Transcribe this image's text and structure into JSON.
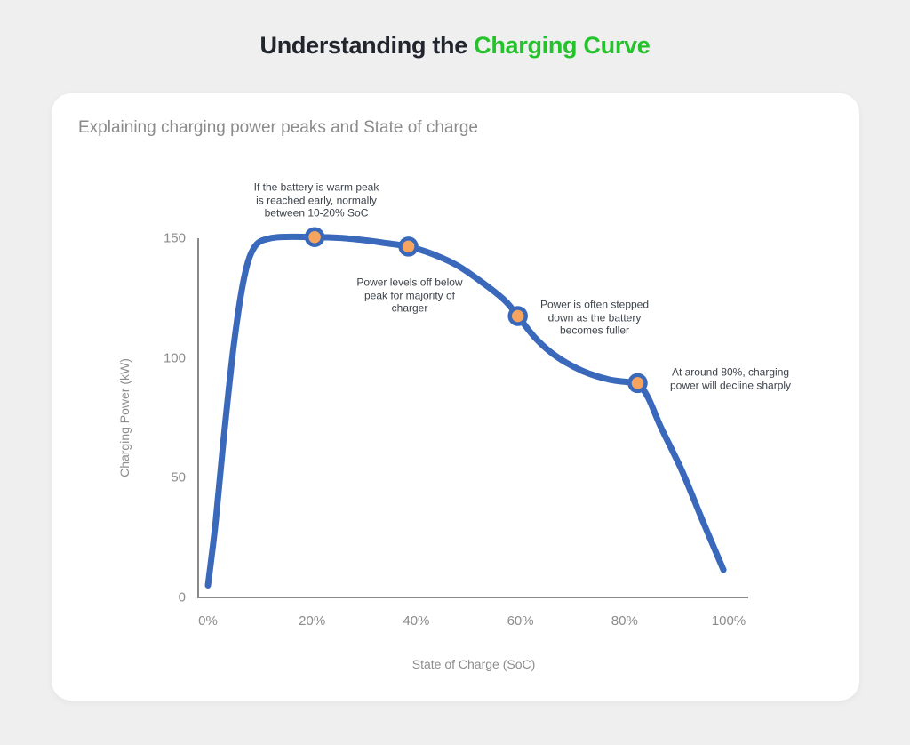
{
  "page": {
    "background_color": "#efefef"
  },
  "title": {
    "prefix": "Understanding the",
    "highlight": "Charging Curve"
  },
  "card": {
    "subtitle": "Explaining charging power peaks and State of charge"
  },
  "colors": {
    "title_text": "#21262e",
    "title_highlight": "#24c32b",
    "subtitle_text": "#8b8b8b",
    "axis_line": "#8a8a8a",
    "tick_text": "#8c8c8c",
    "annotation_text": "#3d434b",
    "curve_line": "#3a69bb",
    "marker_fill": "#f7a55e",
    "card_background": "#ffffff"
  },
  "chart_data": {
    "type": "line",
    "title": "",
    "xlabel": "State of Charge (SoC)",
    "ylabel": "Charging Power (kW)",
    "xlim": [
      0,
      100
    ],
    "ylim": [
      0,
      150
    ],
    "grid": false,
    "legend": false,
    "x_ticks": [
      {
        "label": "0%",
        "value": 0
      },
      {
        "label": "20%",
        "value": 20
      },
      {
        "label": "40%",
        "value": 40
      },
      {
        "label": "60%",
        "value": 60
      },
      {
        "label": "80%",
        "value": 80
      },
      {
        "label": "100%",
        "value": 100
      }
    ],
    "y_ticks": [
      {
        "label": "0",
        "value": 0
      },
      {
        "label": "50",
        "value": 50
      },
      {
        "label": "100",
        "value": 100
      },
      {
        "label": "150",
        "value": 150
      }
    ],
    "curve": {
      "soc": [
        0,
        1.5,
        3,
        5,
        7,
        9,
        12,
        16,
        20.5,
        25,
        30,
        34,
        38.5,
        43,
        48,
        53,
        57,
        59.5,
        63,
        67,
        72,
        77,
        80.5,
        82.5,
        84.5,
        87,
        91,
        95,
        99
      ],
      "kw": [
        5,
        32,
        66,
        106,
        134,
        146.5,
        150,
        150.6,
        150.5,
        150.2,
        149.2,
        148,
        146.5,
        143.5,
        138.5,
        131,
        124,
        117.5,
        108,
        100.5,
        94.5,
        91,
        90,
        89.5,
        83.5,
        71,
        53,
        32,
        11.5
      ]
    },
    "markers": [
      {
        "soc": 20.5,
        "kw": 150.5,
        "note_index": 0
      },
      {
        "soc": 38.5,
        "kw": 146.5,
        "note_index": 1
      },
      {
        "soc": 59.5,
        "kw": 117.5,
        "note_index": 2
      },
      {
        "soc": 82.5,
        "kw": 89.5,
        "note_index": 3
      }
    ],
    "annotations": [
      {
        "text": "If the battery is warm peak\nis reached early, normally\nbetween 10-20% SoC"
      },
      {
        "text": "Power levels off below\npeak for majority of\ncharger"
      },
      {
        "text": "Power is often stepped\ndown as the battery\nbecomes fuller"
      },
      {
        "text": "At around 80%, charging\npower will decline sharply"
      }
    ]
  }
}
